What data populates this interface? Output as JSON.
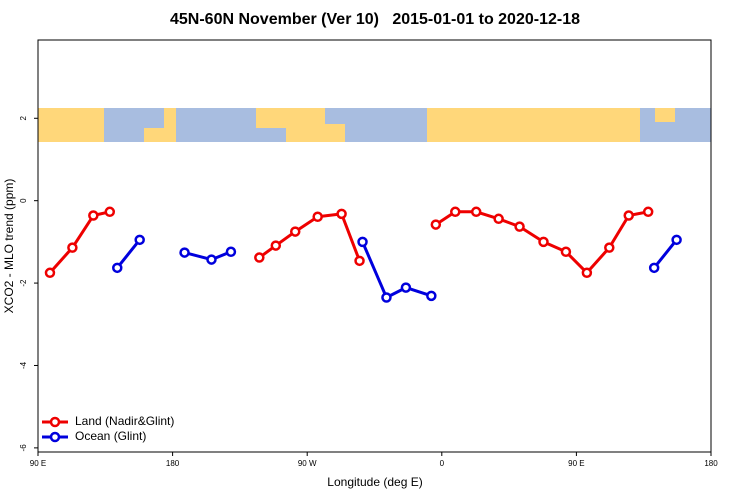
{
  "chart_data": {
    "type": "line",
    "title": "45N-60N November (Ver 10)   2015-01-01 to 2020-12-18",
    "xlabel": "Longitude (deg E)",
    "ylabel": "XCO2 - MLO trend (ppm)",
    "xlim": [
      90,
      540
    ],
    "xticks": [
      {
        "value": 90,
        "label": "90 E"
      },
      {
        "value": 180,
        "label": "180"
      },
      {
        "value": 270,
        "label": "90 W"
      },
      {
        "value": 360,
        "label": "0"
      },
      {
        "value": 450,
        "label": "90 E"
      },
      {
        "value": 540,
        "label": "180"
      }
    ],
    "ylim": [
      -6.1,
      3.9
    ],
    "yticks": [
      -6,
      -4,
      -2,
      0,
      2
    ],
    "legend": "bottom-left",
    "series": [
      {
        "name": "Land (Nadir&Glint)",
        "color": "#ee0000",
        "x": [
          98,
          113,
          127,
          138,
          null,
          238,
          249,
          262,
          277,
          293,
          305,
          null,
          356,
          369,
          383,
          398,
          412,
          428,
          443,
          457,
          472,
          485,
          498
        ],
        "values": [
          -1.75,
          -1.14,
          -0.36,
          -0.27,
          null,
          -1.38,
          -1.09,
          -0.75,
          -0.39,
          -0.32,
          -1.46,
          null,
          -0.58,
          -0.27,
          -0.27,
          -0.44,
          -0.63,
          -1.0,
          -1.24,
          -1.75,
          -1.14,
          -0.36,
          -0.27
        ]
      },
      {
        "name": "Ocean (Glint)",
        "color": "#0000dd",
        "x": [
          143,
          158,
          null,
          188,
          206,
          219,
          null,
          307,
          323,
          336,
          353,
          null,
          502,
          517
        ],
        "values": [
          -1.63,
          -0.95,
          null,
          -1.26,
          -1.43,
          -1.24,
          null,
          -1.0,
          -2.35,
          -2.11,
          -2.31,
          null,
          -1.63,
          -0.95
        ]
      }
    ]
  }
}
